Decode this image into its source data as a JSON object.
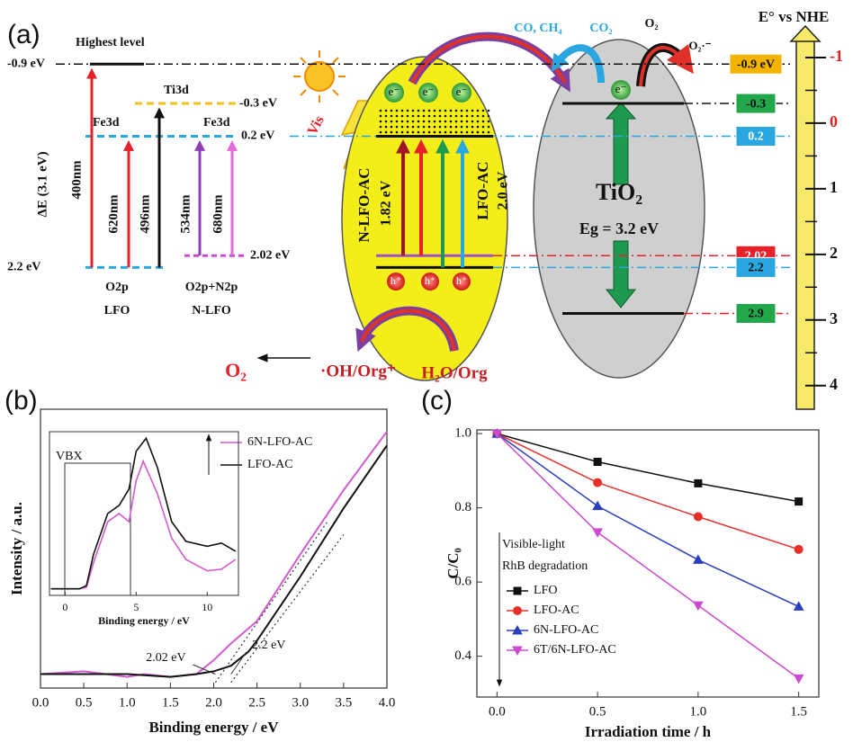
{
  "diagram_a": {
    "panel_label": "(a)",
    "highest_level": "Highest level",
    "levels": [
      {
        "value": -0.9,
        "label": "-0.9 eV"
      },
      {
        "value": -0.3,
        "label": "-0.3 eV"
      },
      {
        "value": 0.2,
        "label": "0.2 eV"
      },
      {
        "value": 2.02,
        "label": "2.02 eV"
      },
      {
        "value": 2.2,
        "label": "2.2 eV"
      }
    ],
    "orbitals": [
      "Ti3d",
      "Fe3d",
      "Fe3d"
    ],
    "band_gap": "ΔE (3.1 eV)",
    "wavelengths": [
      "400nm",
      "620nm",
      "496nm",
      "534nm",
      "680nm"
    ],
    "materials": [
      {
        "orbital": "O2p",
        "name": "LFO"
      },
      {
        "orbital": "O2p+N2p",
        "name": "N-LFO"
      }
    ],
    "light": "Vis",
    "n_lfo_ac": {
      "name": "N-LFO-AC",
      "gap": "1.82 eV"
    },
    "lfo_ac": {
      "name": "LFO-AC",
      "gap": "2.0 eV"
    },
    "electrons": [
      "e⁻",
      "e⁻",
      "e⁻",
      "e⁻"
    ],
    "holes": [
      "h⁺",
      "h⁺",
      "h⁺"
    ],
    "tio2": {
      "name": "TiO₂",
      "gap": "Eg = 3.2 eV"
    },
    "reduction": {
      "products": "CO, CH₄",
      "reactant": "CO₂",
      "oxygen": "O₂",
      "superoxide": "O₂·⁻"
    },
    "oxidation": {
      "product": "O₂",
      "intermediate": "·OH/Org⁺",
      "reactant": "H₂O/Org"
    },
    "scale": {
      "title": "E° vs NHE",
      "ylim": [
        -1.26,
        4.36
      ],
      "ticks": [
        -1,
        0,
        1,
        2,
        3,
        4
      ],
      "tick_colors": [
        "#e02020",
        "#e02020",
        "#111111",
        "#111111",
        "#111111",
        "#111111"
      ],
      "boxes": [
        {
          "value": -0.9,
          "label": "-0.9 eV",
          "color": "#f5b400"
        },
        {
          "value": -0.3,
          "color": "#22a84a"
        },
        {
          "value": 0.2,
          "color": "#2aa6e0"
        },
        {
          "value": 2.02,
          "color": "#e8202a"
        },
        {
          "value": 2.2,
          "color": "#2aa6e0"
        },
        {
          "value": 2.9,
          "color": "#22a84a"
        }
      ]
    }
  },
  "chart_data": [
    {
      "type": "line",
      "panel_label": "(b)",
      "xlabel": "Binding energy / eV",
      "ylabel": "Intensity / a.u.",
      "xlim": [
        0,
        4
      ],
      "ylim": [
        0,
        1
      ],
      "xticks": [
        {
          "value": 0,
          "label": "0.0"
        },
        0.5,
        {
          "value": 1,
          "label": "1.0"
        },
        1.5,
        {
          "value": 2,
          "label": "2.0"
        },
        2.5,
        {
          "value": 3,
          "label": "3.0"
        },
        3.5,
        {
          "value": 4,
          "label": "4.0"
        }
      ],
      "legend": "upper center",
      "series": [
        {
          "name": "6N-LFO-AC",
          "color": "#d45ad0",
          "x": [
            0,
            0.5,
            1.0,
            1.2,
            1.5,
            1.8,
            2.0,
            2.2,
            2.5,
            3.0,
            3.5,
            4.0
          ],
          "values": [
            0.05,
            0.06,
            0.04,
            0.05,
            0.04,
            0.05,
            0.1,
            0.16,
            0.24,
            0.48,
            0.71,
            0.92
          ]
        },
        {
          "name": "LFO-AC",
          "color": "#111111",
          "x": [
            0,
            0.5,
            1.0,
            1.5,
            1.8,
            2.0,
            2.2,
            2.4,
            2.5,
            3.0,
            3.5,
            4.0
          ],
          "values": [
            0.05,
            0.05,
            0.05,
            0.04,
            0.05,
            0.06,
            0.08,
            0.13,
            0.17,
            0.4,
            0.645,
            0.87
          ]
        }
      ],
      "annotations": [
        {
          "value": 2.02,
          "label": "2.02 eV"
        },
        {
          "value": 2.2,
          "label": "2.2 eV"
        }
      ],
      "inset": {
        "xlim": [
          -1.1,
          12.2
        ],
        "ylim": [
          0,
          1
        ],
        "xticks": [
          0,
          5,
          10
        ],
        "xlabel": "Binding energy / eV",
        "annotation": "VBX",
        "series": [
          {
            "color": "#d45ad0",
            "x": [
              -1,
              1,
              1.5,
              2,
              3,
              3.8,
              4.5,
              5,
              5.5,
              6.5,
              7.5,
              8.5,
              10,
              11,
              12
            ],
            "values": [
              0.04,
              0.04,
              0.05,
              0.2,
              0.45,
              0.5,
              0.45,
              0.7,
              0.82,
              0.62,
              0.35,
              0.22,
              0.15,
              0.16,
              0.22
            ]
          },
          {
            "color": "#111111",
            "x": [
              -1,
              1,
              1.5,
              2,
              3,
              3.8,
              4.5,
              5,
              5.7,
              6.5,
              7.5,
              8.5,
              10,
              11,
              12
            ],
            "values": [
              0.04,
              0.04,
              0.06,
              0.25,
              0.5,
              0.55,
              0.65,
              0.88,
              0.96,
              0.78,
              0.45,
              0.33,
              0.3,
              0.32,
              0.27
            ]
          }
        ]
      }
    },
    {
      "type": "line",
      "panel_label": "(c)",
      "xlabel": "Irradiation time / h",
      "ylabel": "C/C₀",
      "xlim": [
        -0.1,
        1.6
      ],
      "ylim": [
        0.29,
        1.01
      ],
      "xticks": [
        {
          "value": 0,
          "label": "0.0"
        },
        0.5,
        {
          "value": 1,
          "label": "1.0"
        },
        1.5
      ],
      "yticks": [
        0.4,
        0.6,
        0.8,
        {
          "value": 1,
          "label": "1.0"
        }
      ],
      "legend": "lower left",
      "annotations": [
        "Visible-light",
        "RhB degradation"
      ],
      "x": [
        0,
        0.5,
        1.0,
        1.5
      ],
      "series": [
        {
          "name": "LFO",
          "color": "#111111",
          "marker": "s",
          "values": [
            1.0,
            0.924,
            0.866,
            0.817
          ]
        },
        {
          "name": "LFO-AC",
          "color": "#e8302a",
          "marker": "o",
          "values": [
            1.0,
            0.868,
            0.776,
            0.688
          ]
        },
        {
          "name": "6N-LFO-AC",
          "color": "#2a3fbf",
          "marker": "^",
          "values": [
            1.0,
            0.805,
            0.66,
            0.534
          ]
        },
        {
          "name": "6T/6N-LFO-AC",
          "color": "#cc4ad0",
          "marker": "v",
          "values": [
            1.0,
            0.734,
            0.537,
            0.34
          ]
        }
      ]
    }
  ]
}
